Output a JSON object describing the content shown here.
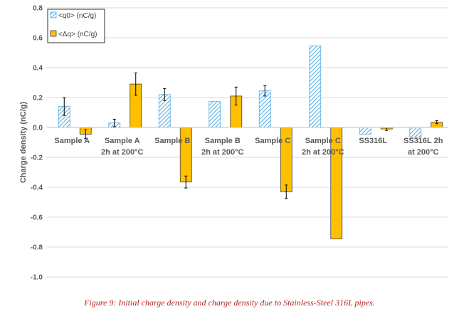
{
  "chart_data": {
    "type": "bar",
    "title": "",
    "xlabel": "",
    "ylabel": "Charge density (nC/g)",
    "ylim": [
      -1.0,
      0.8
    ],
    "yticks": [
      "0.8",
      "0.6",
      "0.4",
      "0.2",
      "0.0",
      "-0.2",
      "-0.4",
      "-0.6",
      "-0.8",
      "-1.0"
    ],
    "yticks_values": [
      0.8,
      0.6,
      0.4,
      0.2,
      0.0,
      -0.2,
      -0.4,
      -0.6,
      -0.8,
      -1.0
    ],
    "grid": "horizontal",
    "legend_position": "top-left",
    "categories": [
      [
        "Sample A"
      ],
      [
        "Sample A",
        "2h at 200°C"
      ],
      [
        "Sample B"
      ],
      [
        "Sample B",
        "2h at 200°C"
      ],
      [
        "Sample C"
      ],
      [
        "Sample C",
        "2h at 200°C"
      ],
      [
        "SS316L"
      ],
      [
        "SS316L 2h",
        "at 200°C"
      ]
    ],
    "series": [
      {
        "name": "<q0> (nC/g)",
        "pattern": "hatched",
        "color": "#5aaee0",
        "values": [
          0.14,
          0.03,
          0.22,
          0.175,
          0.245,
          0.545,
          -0.045,
          -0.065
        ],
        "errors": [
          0.06,
          0.025,
          0.04,
          0.0,
          0.035,
          0.0,
          0.0,
          0.0
        ]
      },
      {
        "name": "<Δq> (nC/g)",
        "pattern": "solid",
        "color": "#ffc000",
        "values": [
          -0.045,
          0.29,
          -0.365,
          0.21,
          -0.43,
          -0.745,
          -0.01,
          0.035
        ],
        "errors": [
          0.03,
          0.075,
          0.04,
          0.06,
          0.045,
          0.0,
          0.01,
          0.01
        ]
      }
    ]
  },
  "caption": "Figure 9: Initial charge density and charge density due to Stainless-Steel 316L pipes."
}
